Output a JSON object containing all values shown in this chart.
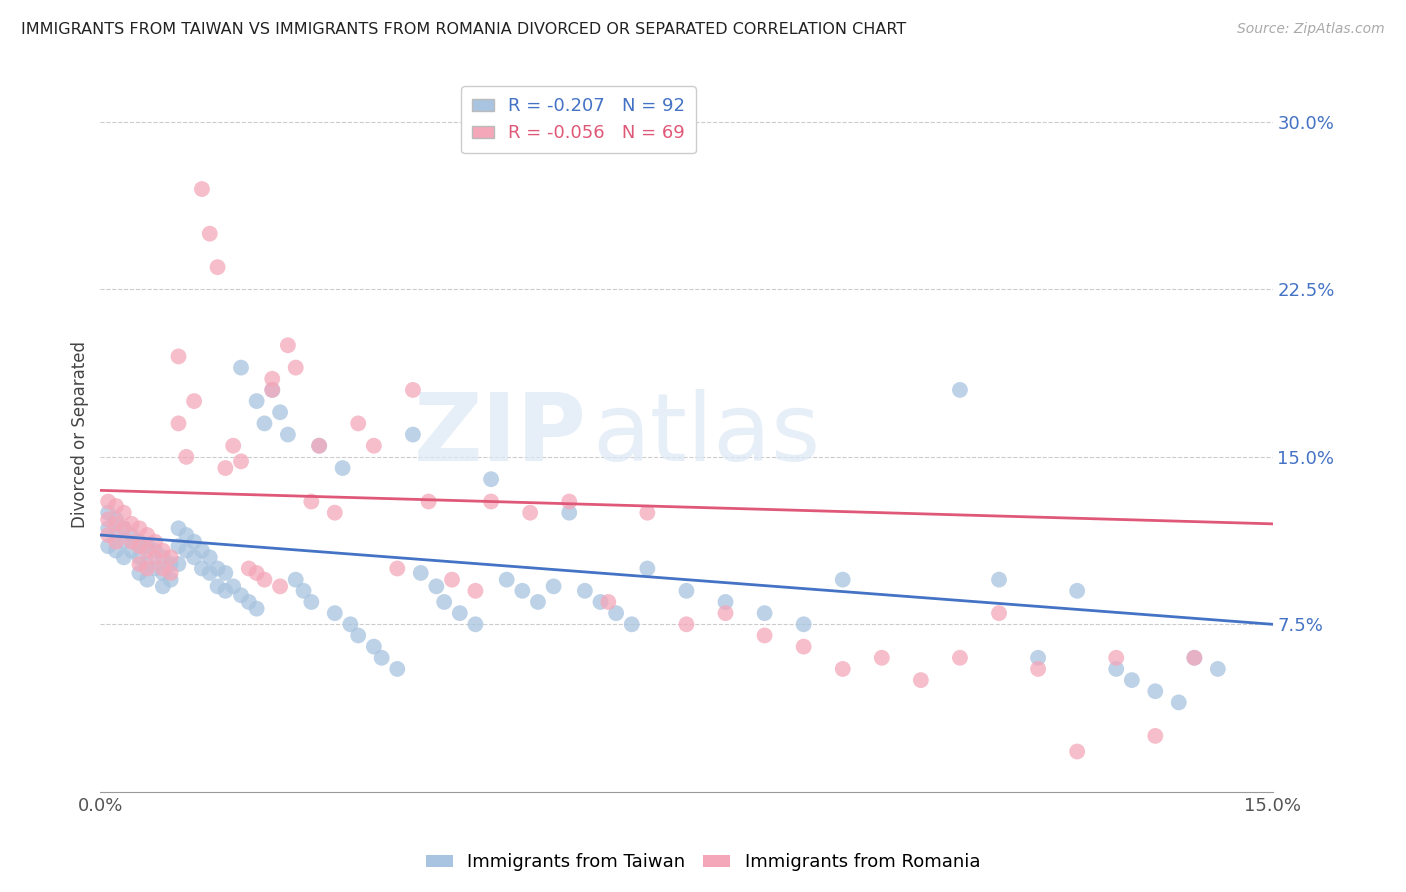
{
  "title": "IMMIGRANTS FROM TAIWAN VS IMMIGRANTS FROM ROMANIA DIVORCED OR SEPARATED CORRELATION CHART",
  "source": "Source: ZipAtlas.com",
  "ylabel": "Divorced or Separated",
  "xlim": [
    0.0,
    0.15
  ],
  "ylim": [
    0.0,
    0.32
  ],
  "xticks": [
    0.0,
    0.05,
    0.1,
    0.15
  ],
  "xticklabels": [
    "0.0%",
    "",
    "",
    "15.0%"
  ],
  "yticks_right": [
    0.075,
    0.15,
    0.225,
    0.3
  ],
  "yticklabels_right": [
    "7.5%",
    "15.0%",
    "22.5%",
    "30.0%"
  ],
  "taiwan_color": "#a8c4e0",
  "romania_color": "#f4a7b9",
  "taiwan_line_color": "#4472c4",
  "romania_line_color": "#e05878",
  "taiwan_R": -0.207,
  "taiwan_N": 92,
  "romania_R": -0.056,
  "romania_N": 69,
  "legend_label_taiwan": "Immigrants from Taiwan",
  "legend_label_romania": "Immigrants from Romania",
  "watermark_zip": "ZIP",
  "watermark_atlas": "atlas",
  "taiwan_line_y0": 0.115,
  "taiwan_line_y1": 0.075,
  "romania_line_y0": 0.135,
  "romania_line_y1": 0.12,
  "taiwan_x": [
    0.001,
    0.001,
    0.001,
    0.002,
    0.002,
    0.002,
    0.003,
    0.003,
    0.003,
    0.004,
    0.004,
    0.005,
    0.005,
    0.005,
    0.006,
    0.006,
    0.006,
    0.007,
    0.007,
    0.008,
    0.008,
    0.008,
    0.009,
    0.009,
    0.01,
    0.01,
    0.01,
    0.011,
    0.011,
    0.012,
    0.012,
    0.013,
    0.013,
    0.014,
    0.014,
    0.015,
    0.015,
    0.016,
    0.016,
    0.017,
    0.018,
    0.018,
    0.019,
    0.02,
    0.02,
    0.021,
    0.022,
    0.023,
    0.024,
    0.025,
    0.026,
    0.027,
    0.028,
    0.03,
    0.031,
    0.032,
    0.033,
    0.035,
    0.036,
    0.038,
    0.04,
    0.041,
    0.043,
    0.044,
    0.046,
    0.048,
    0.05,
    0.052,
    0.054,
    0.056,
    0.058,
    0.06,
    0.062,
    0.064,
    0.066,
    0.068,
    0.07,
    0.075,
    0.08,
    0.085,
    0.09,
    0.095,
    0.11,
    0.115,
    0.12,
    0.125,
    0.13,
    0.132,
    0.135,
    0.138,
    0.14,
    0.143
  ],
  "taiwan_y": [
    0.125,
    0.118,
    0.11,
    0.122,
    0.115,
    0.108,
    0.118,
    0.112,
    0.105,
    0.115,
    0.108,
    0.112,
    0.105,
    0.098,
    0.11,
    0.102,
    0.095,
    0.108,
    0.1,
    0.105,
    0.098,
    0.092,
    0.102,
    0.095,
    0.118,
    0.11,
    0.102,
    0.115,
    0.108,
    0.112,
    0.105,
    0.108,
    0.1,
    0.105,
    0.098,
    0.1,
    0.092,
    0.098,
    0.09,
    0.092,
    0.19,
    0.088,
    0.085,
    0.175,
    0.082,
    0.165,
    0.18,
    0.17,
    0.16,
    0.095,
    0.09,
    0.085,
    0.155,
    0.08,
    0.145,
    0.075,
    0.07,
    0.065,
    0.06,
    0.055,
    0.16,
    0.098,
    0.092,
    0.085,
    0.08,
    0.075,
    0.14,
    0.095,
    0.09,
    0.085,
    0.092,
    0.125,
    0.09,
    0.085,
    0.08,
    0.075,
    0.1,
    0.09,
    0.085,
    0.08,
    0.075,
    0.095,
    0.18,
    0.095,
    0.06,
    0.09,
    0.055,
    0.05,
    0.045,
    0.04,
    0.06,
    0.055
  ],
  "romania_x": [
    0.001,
    0.001,
    0.001,
    0.002,
    0.002,
    0.002,
    0.003,
    0.003,
    0.004,
    0.004,
    0.005,
    0.005,
    0.005,
    0.006,
    0.006,
    0.006,
    0.007,
    0.007,
    0.008,
    0.008,
    0.009,
    0.009,
    0.01,
    0.01,
    0.011,
    0.012,
    0.013,
    0.014,
    0.015,
    0.016,
    0.017,
    0.018,
    0.019,
    0.02,
    0.021,
    0.022,
    0.022,
    0.023,
    0.024,
    0.025,
    0.027,
    0.028,
    0.03,
    0.033,
    0.035,
    0.038,
    0.04,
    0.042,
    0.045,
    0.048,
    0.05,
    0.055,
    0.06,
    0.065,
    0.07,
    0.075,
    0.08,
    0.085,
    0.09,
    0.095,
    0.1,
    0.105,
    0.11,
    0.115,
    0.12,
    0.125,
    0.13,
    0.135,
    0.14
  ],
  "romania_y": [
    0.13,
    0.122,
    0.115,
    0.128,
    0.12,
    0.112,
    0.125,
    0.118,
    0.12,
    0.112,
    0.118,
    0.11,
    0.102,
    0.115,
    0.108,
    0.1,
    0.112,
    0.105,
    0.108,
    0.1,
    0.105,
    0.098,
    0.165,
    0.195,
    0.15,
    0.175,
    0.27,
    0.25,
    0.235,
    0.145,
    0.155,
    0.148,
    0.1,
    0.098,
    0.095,
    0.185,
    0.18,
    0.092,
    0.2,
    0.19,
    0.13,
    0.155,
    0.125,
    0.165,
    0.155,
    0.1,
    0.18,
    0.13,
    0.095,
    0.09,
    0.13,
    0.125,
    0.13,
    0.085,
    0.125,
    0.075,
    0.08,
    0.07,
    0.065,
    0.055,
    0.06,
    0.05,
    0.06,
    0.08,
    0.055,
    0.018,
    0.06,
    0.025,
    0.06
  ]
}
